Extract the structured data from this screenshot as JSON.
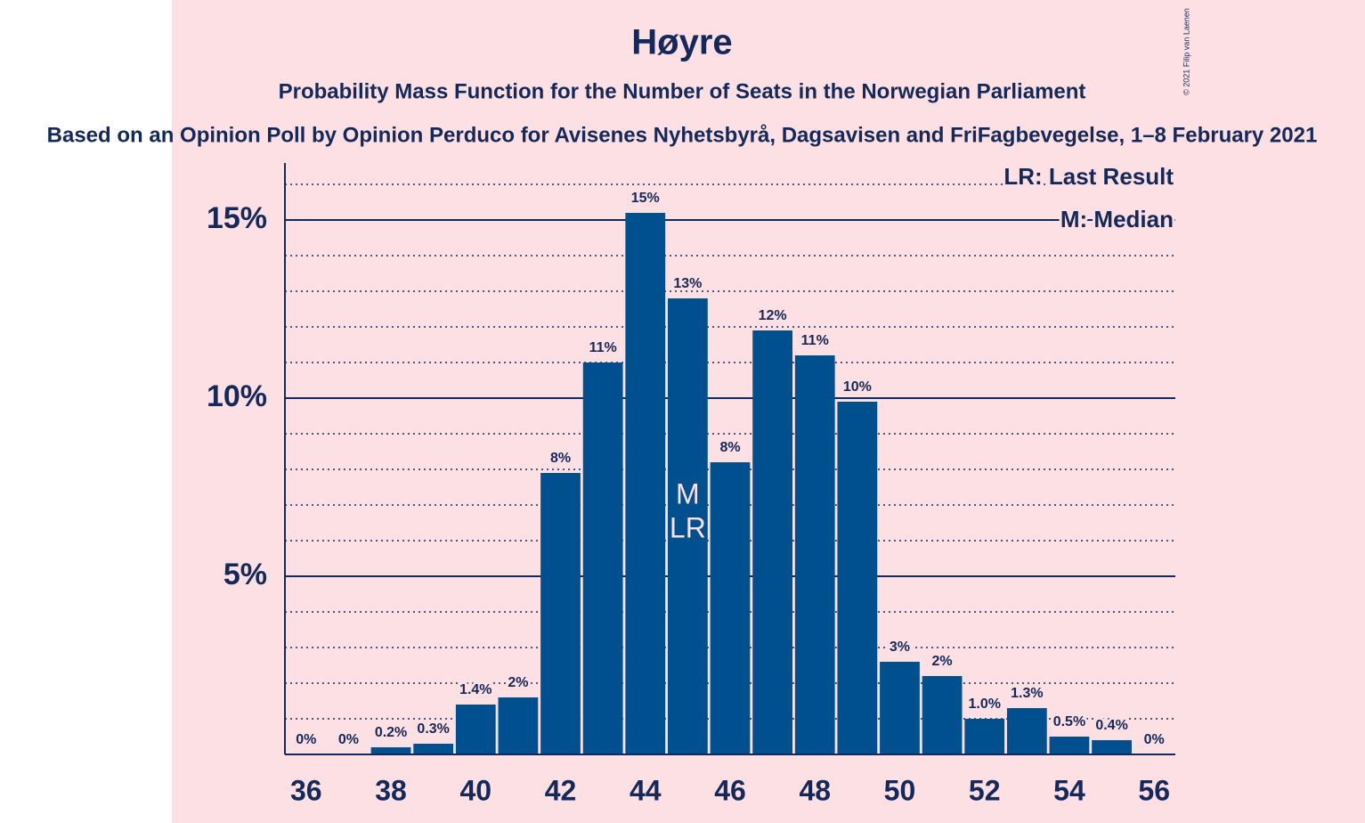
{
  "chart_data": {
    "type": "bar",
    "title": "Høyre",
    "subtitle": "Probability Mass Function for the Number of Seats in the Norwegian Parliament",
    "source_note": "Based on an Opinion Poll by Opinion Perduco for Avisenes Nyhetsbyrå, Dagsavisen and FriFagbevegelse, 1–8 February 2021",
    "copyright": "© 2021 Filip van Laenen",
    "x": [
      36,
      37,
      38,
      39,
      40,
      41,
      42,
      43,
      44,
      45,
      46,
      47,
      48,
      49,
      50,
      51,
      52,
      53,
      54,
      55,
      56
    ],
    "values": [
      0,
      0,
      0.2,
      0.3,
      1.4,
      1.6,
      7.9,
      11.0,
      15.2,
      12.8,
      8.2,
      11.9,
      11.2,
      9.9,
      2.6,
      2.2,
      1.0,
      1.3,
      0.5,
      0.4,
      0
    ],
    "value_labels": [
      "0%",
      "0%",
      "0.2%",
      "0.3%",
      "1.4%",
      "2%",
      "8%",
      "11%",
      "15%",
      "13%",
      "8%",
      "12%",
      "11%",
      "10%",
      "3%",
      "2%",
      "1.0%",
      "1.3%",
      "0.5%",
      "0.4%",
      "0%"
    ],
    "color": "#00508f",
    "xlim": [
      35.5,
      56.5
    ],
    "xticks": [
      36,
      38,
      40,
      42,
      44,
      46,
      48,
      50,
      52,
      54,
      56
    ],
    "ylim": [
      0,
      16.6
    ],
    "yticks": [
      {
        "value": 5,
        "label": "5%"
      },
      {
        "value": 10,
        "label": "10%"
      },
      {
        "value": 15,
        "label": "15%"
      }
    ],
    "minor_yticks": [
      1,
      2,
      3,
      4,
      6,
      7,
      8,
      9,
      11,
      12,
      13,
      14,
      16
    ],
    "grid": true,
    "median": 45,
    "last_result": 45,
    "median_mark": "M",
    "last_result_mark": "LR",
    "legend": [
      "LR: Last Result",
      "M: Median"
    ]
  }
}
